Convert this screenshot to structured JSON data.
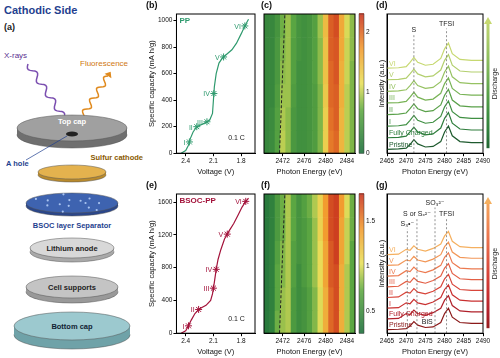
{
  "diagram": {
    "panel": "(a)",
    "title": "Cathodic Side",
    "beam": "X-rays",
    "emission": "Fluorescence",
    "parts": [
      "Top cap",
      "A hole",
      "Sulfur cathode",
      "BSOC layer Separator",
      "Lithium anode",
      "Cell supports",
      "Bottom cap"
    ]
  },
  "chart_data": [
    {
      "panel": "(b)",
      "type": "line",
      "title": "PP",
      "x_label": "Voltage (V)",
      "y_label": "Specific capacity (mA h/g)",
      "xlim": [
        2.5,
        1.65
      ],
      "xticks": [
        2.4,
        2.1,
        1.8
      ],
      "ylim": [
        0,
        1050
      ],
      "yticks": [
        0,
        200,
        400,
        600,
        800,
        1000
      ],
      "grid": false,
      "series": [
        {
          "color": "#2f9a6e",
          "x": [
            2.45,
            2.4,
            2.37,
            2.35,
            2.32,
            2.28,
            2.2,
            2.14,
            2.11,
            2.1,
            2.09,
            2.07,
            2.04,
            2.0,
            1.95,
            1.9,
            1.85,
            1.8,
            1.76,
            1.72
          ],
          "values": [
            0,
            20,
            60,
            110,
            160,
            200,
            225,
            250,
            300,
            400,
            500,
            600,
            680,
            720,
            750,
            780,
            830,
            900,
            960,
            1010
          ]
        }
      ],
      "points": {
        "marker": "star",
        "labels": [
          "I",
          "II",
          "III",
          "IV",
          "V",
          "VI"
        ],
        "x": [
          2.36,
          2.28,
          2.17,
          2.095,
          1.99,
          1.76
        ],
        "y": [
          85,
          200,
          237,
          450,
          726,
          960
        ]
      },
      "annotations": [
        {
          "text": "0.1 C",
          "x": 1.85,
          "y": 90
        }
      ]
    },
    {
      "panel": "(c)",
      "type": "heatmap",
      "x_label": "Photon Energy (eV)",
      "x": [
        2469,
        2470,
        2471,
        2472,
        2473,
        2474,
        2475,
        2476,
        2477,
        2478,
        2479,
        2480,
        2481,
        2482,
        2483,
        2484,
        2485
      ],
      "xlim": [
        2468.5,
        2485.5
      ],
      "xticks": [
        2472,
        2476,
        2480,
        2484
      ],
      "tick_labels": "x",
      "z": [
        [
          0.3,
          0.35,
          0.6,
          1.0,
          0.85,
          0.5,
          0.4,
          0.4,
          0.45,
          0.55,
          0.8,
          1.3,
          1.9,
          2.0,
          1.5,
          1.0,
          0.8
        ],
        [
          0.3,
          0.35,
          0.6,
          0.95,
          0.85,
          0.5,
          0.4,
          0.4,
          0.45,
          0.55,
          0.8,
          1.3,
          1.95,
          2.05,
          1.5,
          1.0,
          0.8
        ],
        [
          0.3,
          0.3,
          0.55,
          0.9,
          0.9,
          0.55,
          0.4,
          0.4,
          0.45,
          0.55,
          0.8,
          1.35,
          2.0,
          2.05,
          1.55,
          1.0,
          0.8
        ],
        [
          0.3,
          0.3,
          0.5,
          0.85,
          0.9,
          0.6,
          0.4,
          0.4,
          0.45,
          0.6,
          0.85,
          1.4,
          2.0,
          2.1,
          1.55,
          1.05,
          0.8
        ],
        [
          0.3,
          0.3,
          0.5,
          0.8,
          0.9,
          0.6,
          0.45,
          0.4,
          0.45,
          0.6,
          0.85,
          1.4,
          2.05,
          2.1,
          1.6,
          1.05,
          0.85
        ],
        [
          0.3,
          0.3,
          0.45,
          0.75,
          0.9,
          0.65,
          0.45,
          0.4,
          0.45,
          0.6,
          0.9,
          1.45,
          2.05,
          2.15,
          1.6,
          1.1,
          0.85
        ]
      ],
      "colorbar": {
        "range": [
          0,
          2.3
        ],
        "ticks": [
          0,
          1,
          2
        ]
      },
      "dashed_line": {
        "x": [
          2471.4,
          2472.4
        ]
      }
    },
    {
      "panel": "(d)",
      "type": "line",
      "x_label": "Photon Energy (eV)",
      "y_label": "Intensity (a.u.)",
      "x": [
        2465,
        2468,
        2470,
        2471,
        2472,
        2473,
        2475,
        2477,
        2479,
        2480,
        2481,
        2482,
        2484,
        2487,
        2490
      ],
      "xlim": [
        2465,
        2490
      ],
      "xticks": [
        2465,
        2470,
        2475,
        2480,
        2485,
        2490
      ],
      "ylim": [
        -0.2,
        7.0
      ],
      "tick_labels": "x",
      "grid": false,
      "series": [
        {
          "name": "Pristine",
          "color": "#1e5a2e",
          "values": [
            0,
            0.02,
            0.06,
            0.25,
            0.5,
            0.28,
            0.12,
            0.15,
            0.4,
            0.9,
            1.2,
            0.7,
            0.4,
            0.35,
            0.35
          ]
        },
        {
          "name": "Fully Charged",
          "color": "#2e7d3c",
          "values": [
            0.6,
            0.62,
            0.68,
            0.9,
            1.15,
            0.9,
            0.75,
            0.8,
            1.1,
            1.6,
            1.9,
            1.35,
            1.05,
            1.0,
            1.0
          ]
        },
        {
          "name": "I",
          "color": "#3f8f42",
          "values": [
            1.2,
            1.22,
            1.28,
            1.5,
            1.75,
            1.5,
            1.35,
            1.4,
            1.7,
            2.2,
            2.5,
            1.95,
            1.65,
            1.6,
            1.6
          ]
        },
        {
          "name": "II",
          "color": "#5aa14a",
          "values": [
            1.8,
            1.82,
            1.88,
            2.1,
            2.35,
            2.1,
            1.95,
            2.0,
            2.3,
            2.8,
            3.1,
            2.55,
            2.25,
            2.2,
            2.2
          ]
        },
        {
          "name": "III",
          "color": "#78b356",
          "values": [
            2.4,
            2.42,
            2.48,
            2.7,
            2.95,
            2.7,
            2.55,
            2.6,
            2.9,
            3.4,
            3.7,
            3.15,
            2.85,
            2.8,
            2.8
          ]
        },
        {
          "name": "IV",
          "color": "#96c262",
          "values": [
            3.0,
            3.02,
            3.08,
            3.3,
            3.55,
            3.3,
            3.15,
            3.2,
            3.5,
            4.0,
            4.3,
            3.75,
            3.45,
            3.4,
            3.4
          ]
        },
        {
          "name": "V",
          "color": "#b3cf6e",
          "values": [
            3.6,
            3.62,
            3.68,
            3.9,
            4.15,
            3.9,
            3.75,
            3.8,
            4.1,
            4.6,
            4.9,
            4.35,
            4.05,
            4.0,
            4.0
          ]
        },
        {
          "name": "VI",
          "color": "#c6d870",
          "values": [
            4.2,
            4.22,
            4.28,
            4.5,
            4.75,
            4.5,
            4.35,
            4.4,
            4.7,
            5.2,
            5.5,
            4.95,
            4.65,
            4.6,
            4.6
          ]
        }
      ],
      "peaks": [
        {
          "text": "S",
          "x": 2472,
          "y": 6.0
        },
        {
          "text": "TFSI",
          "x": 2480.5,
          "y": 6.3
        }
      ],
      "side_text": "Discharge"
    },
    {
      "panel": "(e)",
      "type": "line",
      "title": "BSOC-PP",
      "x_label": "Voltage (V)",
      "y_label": "Specific capacity (mA h/g)",
      "xlim": [
        2.5,
        1.65
      ],
      "xticks": [
        2.4,
        2.1,
        1.8
      ],
      "ylim": [
        0,
        1700
      ],
      "yticks": [
        0,
        400,
        800,
        1200,
        1600
      ],
      "grid": false,
      "series": [
        {
          "color": "#a3123a",
          "x": [
            2.45,
            2.4,
            2.37,
            2.34,
            2.3,
            2.25,
            2.18,
            2.13,
            2.11,
            2.09,
            2.07,
            2.05,
            2.02,
            1.98,
            1.93,
            1.88,
            1.83,
            1.79,
            1.75,
            1.72
          ],
          "values": [
            0,
            30,
            90,
            160,
            240,
            300,
            340,
            400,
            480,
            620,
            780,
            900,
            1020,
            1150,
            1250,
            1340,
            1450,
            1540,
            1610,
            1650
          ]
        }
      ],
      "points": {
        "marker": "star",
        "labels": [
          "I",
          "II",
          "III",
          "IV",
          "V",
          "VI"
        ],
        "x": [
          2.37,
          2.26,
          2.1,
          2.07,
          1.95,
          1.75
        ],
        "y": [
          90,
          290,
          550,
          780,
          1210,
          1610
        ]
      },
      "annotations": [
        {
          "text": "0.1 C",
          "x": 1.85,
          "y": 130
        }
      ]
    },
    {
      "panel": "(f)",
      "type": "heatmap",
      "x_label": "Photon Energy (eV)",
      "x": [
        2469,
        2470,
        2471,
        2472,
        2473,
        2474,
        2475,
        2476,
        2477,
        2478,
        2479,
        2480,
        2481,
        2482,
        2483,
        2484,
        2485
      ],
      "xlim": [
        2468.5,
        2485.5
      ],
      "xticks": [
        2472,
        2476,
        2480,
        2484
      ],
      "tick_labels": "x",
      "z": [
        [
          0.35,
          0.4,
          0.75,
          0.85,
          0.9,
          0.6,
          0.5,
          0.55,
          0.65,
          0.8,
          1.0,
          1.3,
          1.6,
          1.7,
          1.3,
          0.9,
          0.7
        ],
        [
          0.35,
          0.4,
          0.7,
          0.85,
          0.9,
          0.6,
          0.5,
          0.55,
          0.65,
          0.8,
          1.0,
          1.3,
          1.6,
          1.7,
          1.3,
          0.9,
          0.7
        ],
        [
          0.35,
          0.4,
          0.7,
          0.8,
          0.9,
          0.65,
          0.5,
          0.6,
          0.7,
          0.85,
          1.05,
          1.35,
          1.65,
          1.7,
          1.3,
          0.9,
          0.7
        ],
        [
          0.35,
          0.4,
          0.65,
          0.8,
          0.9,
          0.65,
          0.55,
          0.6,
          0.7,
          0.85,
          1.05,
          1.35,
          1.65,
          1.75,
          1.35,
          0.95,
          0.7
        ],
        [
          0.35,
          0.4,
          0.6,
          0.75,
          0.9,
          0.7,
          0.55,
          0.6,
          0.7,
          0.85,
          1.1,
          1.4,
          1.7,
          1.75,
          1.35,
          0.95,
          0.75
        ],
        [
          0.35,
          0.4,
          0.6,
          0.75,
          0.9,
          0.7,
          0.55,
          0.65,
          0.75,
          0.9,
          1.1,
          1.4,
          1.7,
          1.75,
          1.4,
          1.0,
          0.75
        ]
      ],
      "colorbar": {
        "range": [
          0.25,
          1.8
        ],
        "ticks": [
          0.5,
          1,
          1.5
        ]
      },
      "dashed_line": {
        "x": [
          2471.4,
          2472.4
        ]
      }
    },
    {
      "panel": "(g)",
      "type": "line",
      "x_label": "Photon Energy (eV)",
      "y_label": "Intensity (a.u.)",
      "x": [
        2465,
        2468,
        2470,
        2471,
        2472,
        2473,
        2475,
        2477,
        2479,
        2480,
        2481,
        2482,
        2484,
        2487,
        2490
      ],
      "xlim": [
        2465,
        2490
      ],
      "xticks": [
        2465,
        2470,
        2475,
        2480,
        2485,
        2490
      ],
      "ylim": [
        -0.2,
        7.6
      ],
      "tick_labels": "x",
      "grid": false,
      "series": [
        {
          "name": "Pristine",
          "color": "#8b1a1a",
          "values": [
            0,
            0.02,
            0.06,
            0.2,
            0.45,
            0.25,
            0.12,
            0.15,
            0.4,
            0.9,
            1.2,
            0.7,
            0.4,
            0.35,
            0.35
          ]
        },
        {
          "name": "Fully Charged",
          "color": "#b0202a",
          "values": [
            0.6,
            0.63,
            0.9,
            0.85,
            1.1,
            0.9,
            0.8,
            0.95,
            1.2,
            1.65,
            1.9,
            1.35,
            1.05,
            1.0,
            1.0
          ]
        },
        {
          "name": "I",
          "color": "#c93030",
          "values": [
            1.2,
            1.23,
            1.5,
            1.45,
            1.7,
            1.5,
            1.4,
            1.55,
            1.8,
            2.25,
            2.5,
            1.95,
            1.65,
            1.6,
            1.6
          ]
        },
        {
          "name": "II",
          "color": "#d8453a",
          "values": [
            1.8,
            1.83,
            2.1,
            2.05,
            2.3,
            2.1,
            2.0,
            2.15,
            2.4,
            2.85,
            3.1,
            2.55,
            2.25,
            2.2,
            2.2
          ]
        },
        {
          "name": "III",
          "color": "#e35f45",
          "values": [
            2.4,
            2.43,
            2.7,
            2.65,
            2.9,
            2.7,
            2.6,
            2.75,
            3.0,
            3.45,
            3.7,
            3.15,
            2.85,
            2.8,
            2.8
          ]
        },
        {
          "name": "IV",
          "color": "#ec7a50",
          "values": [
            3.0,
            3.03,
            3.3,
            3.25,
            3.5,
            3.3,
            3.2,
            3.35,
            3.6,
            4.05,
            4.3,
            3.75,
            3.45,
            3.4,
            3.4
          ]
        },
        {
          "name": "V",
          "color": "#f29758",
          "values": [
            3.6,
            3.63,
            3.9,
            3.85,
            4.1,
            3.9,
            3.8,
            3.95,
            4.2,
            4.65,
            4.9,
            4.35,
            4.05,
            4.0,
            4.0
          ]
        },
        {
          "name": "VI",
          "color": "#f5b060",
          "values": [
            4.2,
            4.23,
            4.5,
            4.45,
            4.7,
            4.5,
            4.4,
            4.55,
            4.8,
            5.25,
            5.5,
            4.95,
            4.65,
            4.6,
            4.6
          ]
        }
      ],
      "peaks": [
        {
          "text": "S₃•⁻",
          "x": 2470.3,
          "y": 5.7
        },
        {
          "text": "S or Sₓ²⁻",
          "x": 2472.8,
          "y": 6.3
        },
        {
          "text": "SO₃²⁻",
          "x": 2477.5,
          "y": 6.9
        },
        {
          "text": "TFSI",
          "x": 2480.5,
          "y": 6.3
        }
      ],
      "annotations": [
        {
          "text": "BiS",
          "x": 2475.5,
          "y": 0.25
        }
      ],
      "side_text": "Discharge"
    }
  ]
}
